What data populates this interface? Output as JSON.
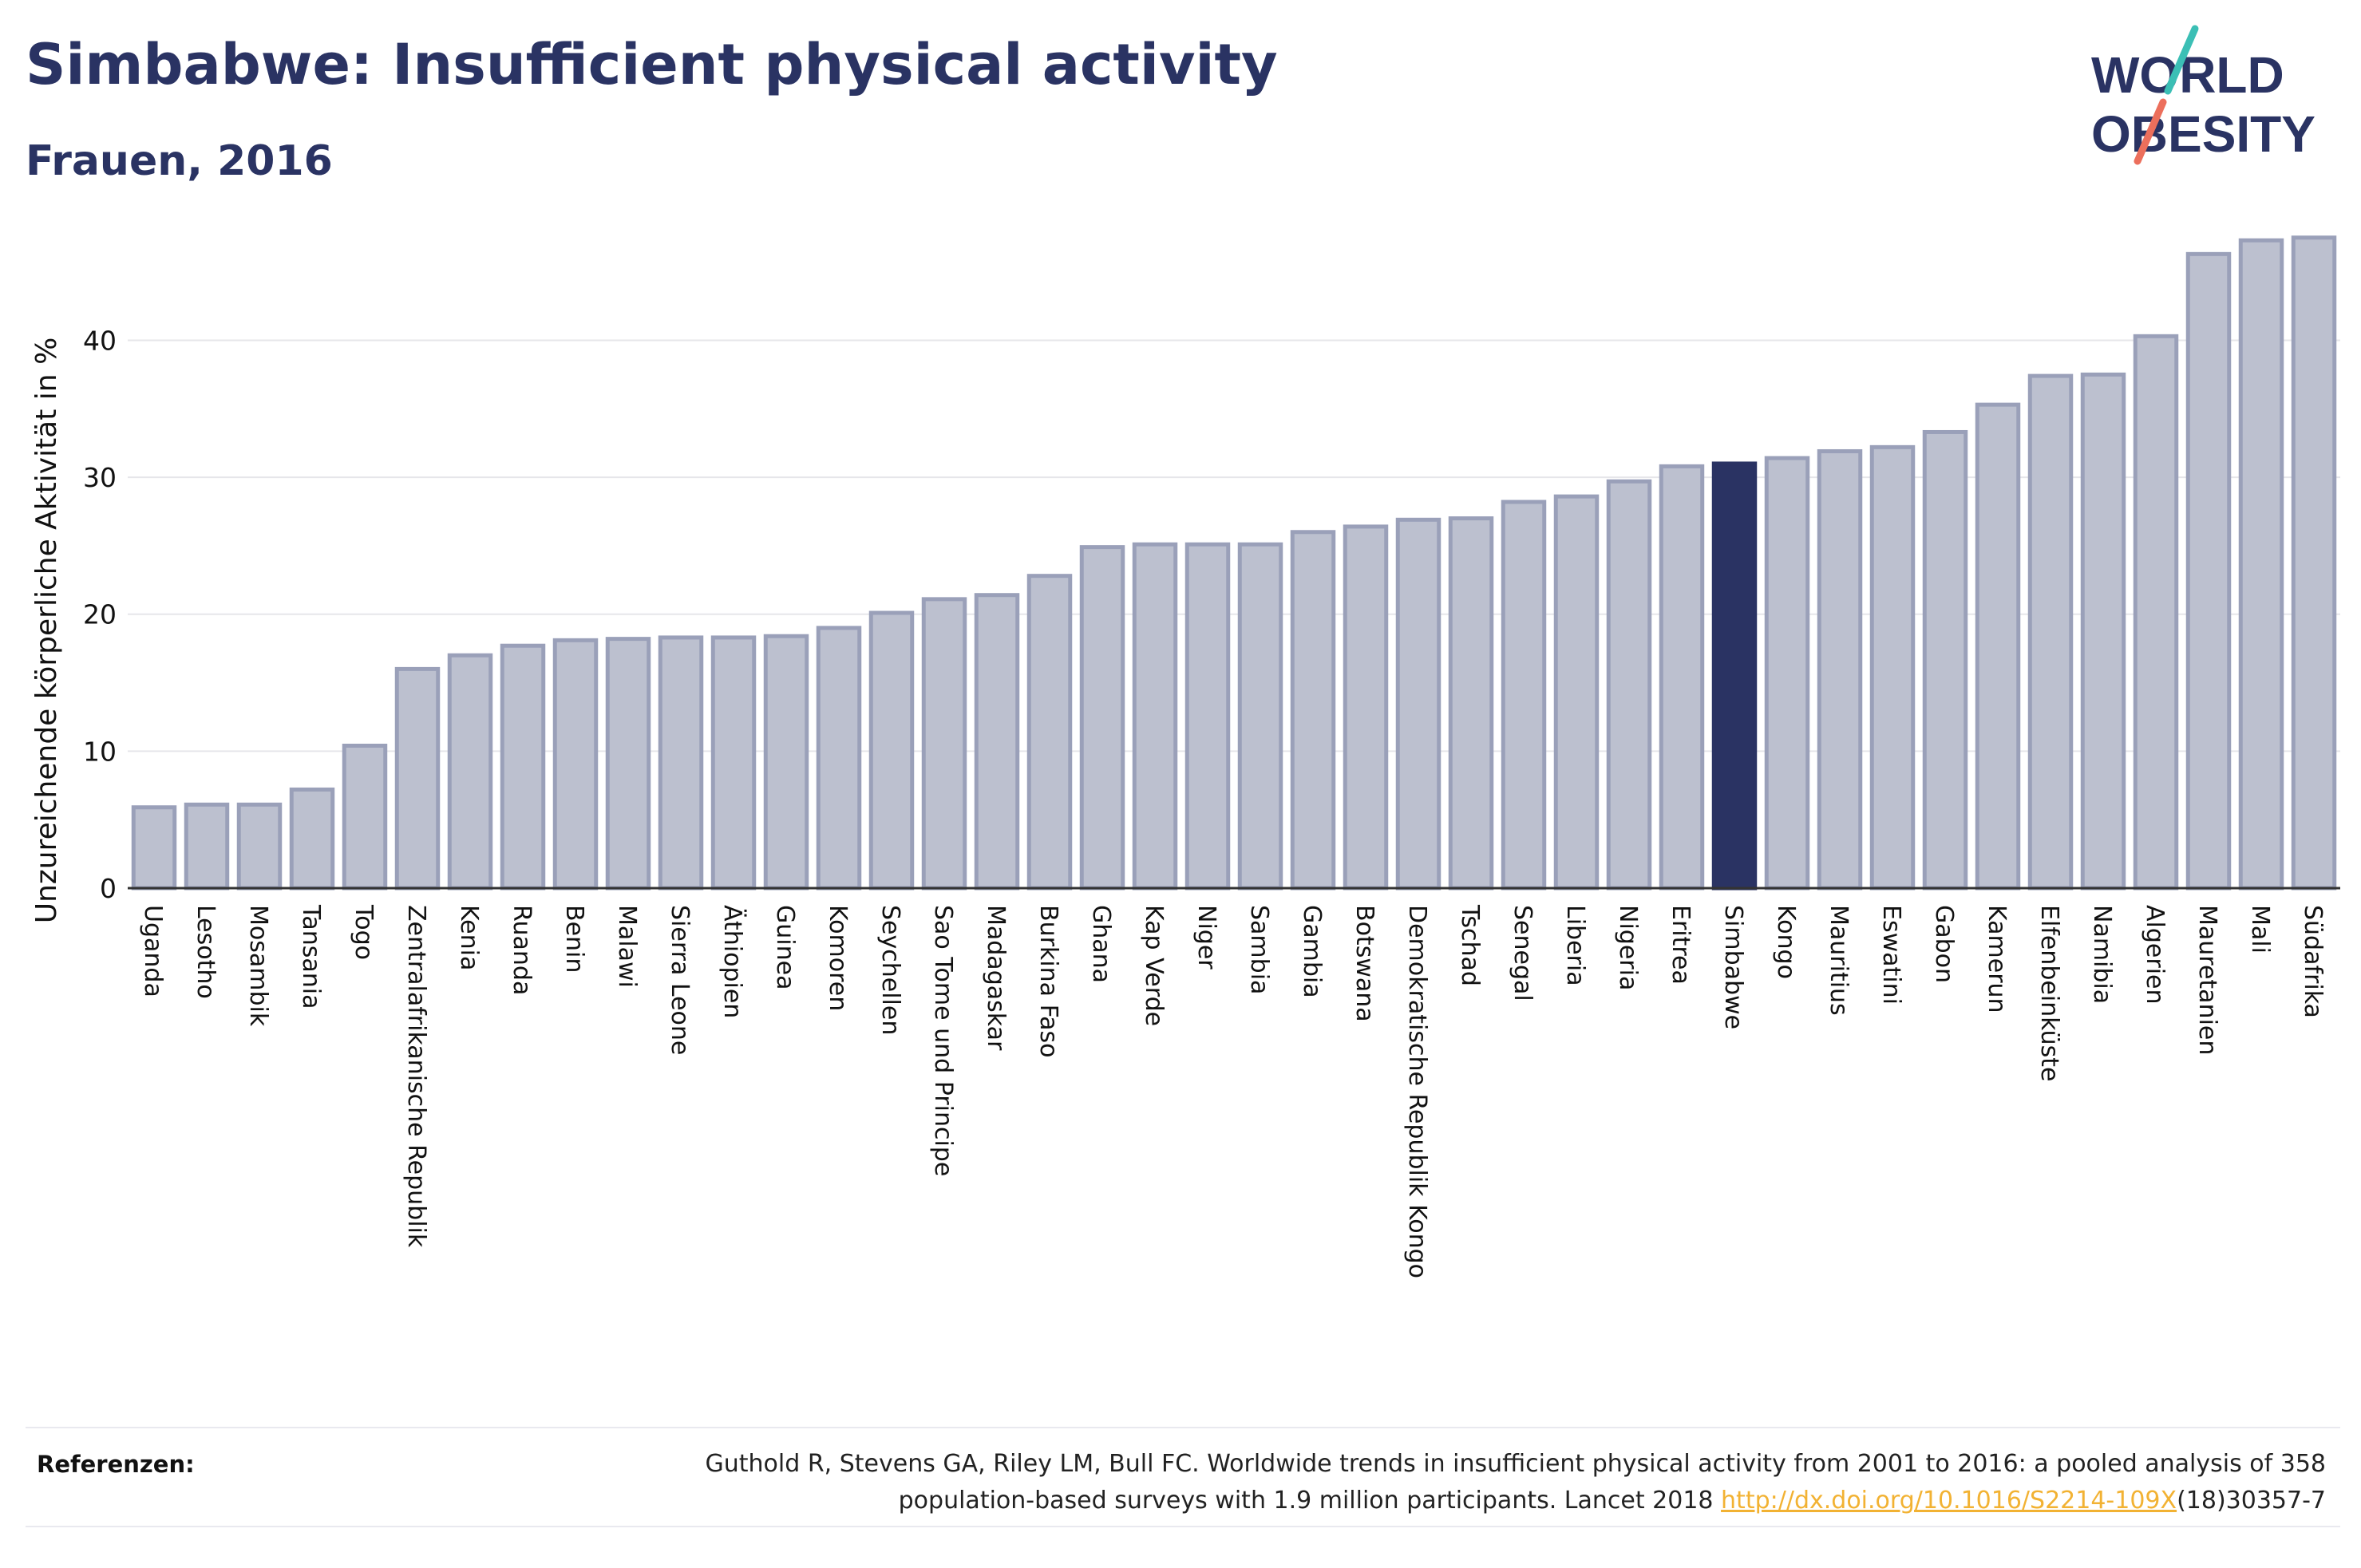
{
  "header": {
    "title": "Simbabwe: Insufficient physical activity",
    "subtitle": "Frauen, 2016"
  },
  "logo": {
    "line1": "WORLD",
    "line2": "OBESITY"
  },
  "colors": {
    "bar_fill": "#bcc0cf",
    "bar_stroke": "#9aa0b9",
    "highlight": "#2a3363",
    "grid": "#e6e6ea",
    "title": "#2a3363",
    "logo_teal": "#3bbfb5",
    "logo_coral": "#ec6f5c"
  },
  "chart_data": {
    "type": "bar",
    "ylabel": "Unzureichende körperliche Aktivität in %",
    "ylim": [
      0,
      49
    ],
    "yticks": [
      0,
      10,
      20,
      30,
      40
    ],
    "grid": true,
    "highlight_category": "Simbabwe",
    "categories": [
      "Uganda",
      "Lesotho",
      "Mosambik",
      "Tansania",
      "Togo",
      "Zentralafrikanische Republik",
      "Kenia",
      "Ruanda",
      "Benin",
      "Malawi",
      "Sierra Leone",
      "Äthiopien",
      "Guinea",
      "Komoren",
      "Seychellen",
      "Sao Tome und Principe",
      "Madagaskar",
      "Burkina Faso",
      "Ghana",
      "Kap Verde",
      "Niger",
      "Sambia",
      "Gambia",
      "Botswana",
      "Demokratische Republik Kongo",
      "Tschad",
      "Senegal",
      "Liberia",
      "Nigeria",
      "Eritrea",
      "Simbabwe",
      "Kongo",
      "Mauritius",
      "Eswatini",
      "Gabon",
      "Kamerun",
      "Elfenbeinküste",
      "Namibia",
      "Algerien",
      "Mauretanien",
      "Mali",
      "Südafrika"
    ],
    "values": [
      5.9,
      6.1,
      6.1,
      7.2,
      10.4,
      16.0,
      17.0,
      17.7,
      18.1,
      18.2,
      18.3,
      18.3,
      18.4,
      19.0,
      20.1,
      21.1,
      21.4,
      22.8,
      24.9,
      25.1,
      25.1,
      25.1,
      26.0,
      26.4,
      26.9,
      27.0,
      28.2,
      28.6,
      29.7,
      30.8,
      31.0,
      31.4,
      31.9,
      32.2,
      33.3,
      35.3,
      37.4,
      37.5,
      40.3,
      46.3,
      47.3,
      47.5
    ]
  },
  "references": {
    "label": "Referenzen:",
    "line1": "Guthold R, Stevens GA, Riley LM, Bull FC. Worldwide trends in insufficient physical activity from 2001 to 2016: a pooled analysis of 358",
    "line2_pre": "population-based surveys with 1.9 million participants. Lancet 2018 ",
    "link": "http://dx.doi.org/10.1016/S2214-109X",
    "line2_post": "(18)30357-7"
  }
}
